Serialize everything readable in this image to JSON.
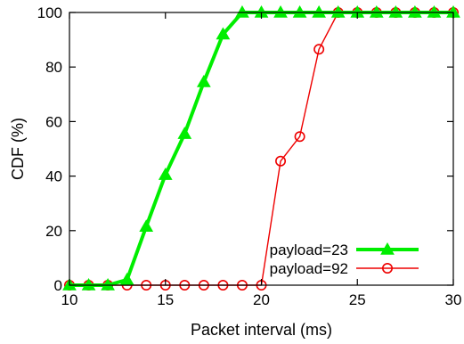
{
  "chart_data": {
    "type": "line",
    "title": "",
    "xlabel": "Packet interval (ms)",
    "ylabel": "CDF (%)",
    "xlim": [
      10,
      30
    ],
    "ylim": [
      0,
      100
    ],
    "xticks": [
      10,
      15,
      20,
      25,
      30
    ],
    "yticks": [
      0,
      20,
      40,
      60,
      80,
      100
    ],
    "grid": false,
    "legend_position": "bottom-right",
    "series": [
      {
        "name": "payload=23",
        "color": "#00ee00",
        "marker": "filled-triangle",
        "x": [
          10,
          11,
          12,
          13,
          14,
          15,
          16,
          17,
          18,
          19,
          20,
          21,
          22,
          23,
          24,
          25,
          26,
          27,
          28,
          29,
          30
        ],
        "y": [
          0,
          0,
          0,
          2,
          21.5,
          40.5,
          55.5,
          74.5,
          92,
          100,
          100,
          100,
          100,
          100,
          100,
          100,
          100,
          100,
          100,
          100,
          100
        ]
      },
      {
        "name": "payload=92",
        "color": "#ee0000",
        "marker": "open-circle",
        "x": [
          10,
          11,
          12,
          13,
          14,
          15,
          16,
          17,
          18,
          19,
          20,
          21,
          22,
          23,
          24,
          25,
          26,
          27,
          28,
          29,
          30
        ],
        "y": [
          0,
          0,
          0,
          0,
          0,
          0,
          0,
          0,
          0,
          0,
          0,
          45.5,
          54.5,
          86.5,
          100,
          100,
          100,
          100,
          100,
          100,
          100
        ]
      }
    ]
  }
}
